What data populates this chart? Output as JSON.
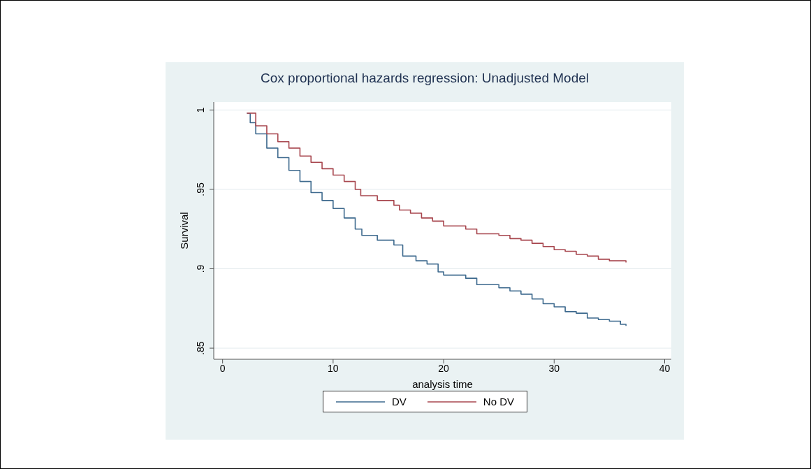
{
  "chart_data": {
    "type": "step",
    "title": "Cox proportional hazards regression: Unadjusted Model",
    "xlabel": "analysis time",
    "ylabel": "Survival",
    "xlim": [
      -0.8,
      40.6
    ],
    "xticks": [
      0,
      10,
      20,
      30,
      40
    ],
    "ylim": [
      0.843,
      1.005
    ],
    "yticks": [
      {
        "value": 0.85,
        "label": ".85"
      },
      {
        "value": 0.9,
        "label": ".9"
      },
      {
        "value": 0.95,
        "label": ".95"
      },
      {
        "value": 1,
        "label": "1"
      }
    ],
    "grid": "y",
    "legend": "bottom",
    "marker": "none",
    "line_style": "solid",
    "series": [
      {
        "name": "DV",
        "color": "#3e6a8e",
        "x": [
          2.2,
          2.5,
          3,
          4,
          5,
          6,
          7,
          8,
          9,
          10,
          11,
          12,
          12.6,
          14,
          15.5,
          16.3,
          17.5,
          18.5,
          19.5,
          20,
          22,
          23,
          25,
          26,
          27,
          28,
          29,
          30,
          31,
          32,
          33,
          34,
          35,
          36,
          36.5
        ],
        "values": [
          0.998,
          0.992,
          0.985,
          0.976,
          0.97,
          0.962,
          0.955,
          0.948,
          0.943,
          0.938,
          0.932,
          0.925,
          0.921,
          0.918,
          0.915,
          0.908,
          0.905,
          0.903,
          0.898,
          0.896,
          0.894,
          0.89,
          0.888,
          0.886,
          0.884,
          0.881,
          0.878,
          0.876,
          0.873,
          0.872,
          0.869,
          0.868,
          0.867,
          0.865,
          0.864
        ]
      },
      {
        "name": "No DV",
        "color": "#a8474f",
        "x": [
          2.2,
          3,
          4,
          5,
          6,
          7,
          8,
          9,
          10,
          11,
          12,
          12.5,
          14,
          15.5,
          16,
          17,
          18,
          19,
          20,
          22,
          23,
          25,
          26,
          27,
          28,
          29,
          30,
          31,
          32,
          33,
          34,
          35,
          36.5
        ],
        "values": [
          0.998,
          0.99,
          0.985,
          0.98,
          0.976,
          0.971,
          0.967,
          0.963,
          0.959,
          0.955,
          0.95,
          0.946,
          0.943,
          0.94,
          0.937,
          0.935,
          0.932,
          0.93,
          0.927,
          0.925,
          0.922,
          0.921,
          0.919,
          0.918,
          0.916,
          0.914,
          0.912,
          0.911,
          0.909,
          0.908,
          0.906,
          0.905,
          0.904
        ]
      }
    ]
  }
}
